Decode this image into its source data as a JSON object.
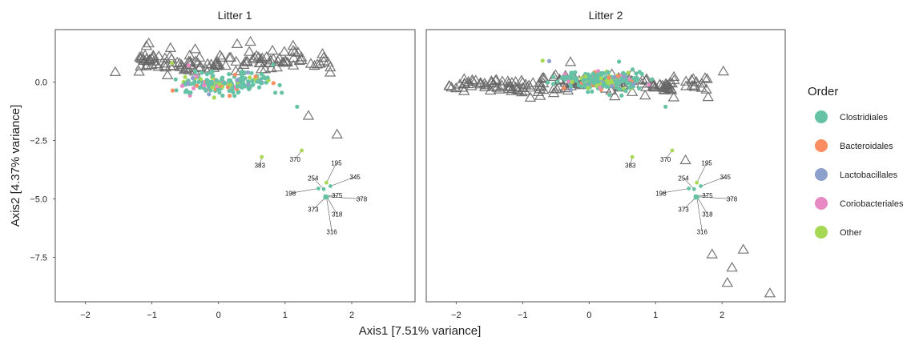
{
  "chart_data": {
    "type": "scatter",
    "xlabel": "Axis1 [7.51% variance]",
    "ylabel": "Axis2 [4.37% variance]",
    "xlim": [
      -2.45,
      2.95
    ],
    "ylim": [
      -9.4,
      2.25
    ],
    "xticks": [
      -2,
      -1,
      0,
      1,
      2
    ],
    "yticks": [
      -7.5,
      -5.0,
      -2.5,
      0.0
    ],
    "ytick_labels": [
      "−7.5",
      "−5.0",
      "−2.5",
      "0.0"
    ],
    "xtick_labels": [
      "−2",
      "−1",
      "0",
      "1",
      "2"
    ],
    "grid": false,
    "legend": {
      "title": "Order",
      "placement": "right",
      "entries": [
        {
          "name": "Clostridiales",
          "color": "#66c2a5"
        },
        {
          "name": "Bacteroidales",
          "color": "#fc8d62"
        },
        {
          "name": "Lactobacillales",
          "color": "#8da0cb"
        },
        {
          "name": "Coriobacteriales",
          "color": "#e78ac3"
        },
        {
          "name": "Other",
          "color": "#a6d854"
        }
      ]
    },
    "marker_colors": {
      "triangle_stroke": "#666666",
      "frame": "#6d6d6d",
      "label_line": "#555555"
    },
    "labeled_points": [
      {
        "label": "383",
        "x": 0.65,
        "y": -3.2,
        "order": "Other",
        "lx": 0.62,
        "ly": -3.55
      },
      {
        "label": "370",
        "x": 1.25,
        "y": -2.92,
        "order": "Other",
        "lx": 1.15,
        "ly": -3.3
      },
      {
        "label": "195",
        "x": 1.62,
        "y": -4.3,
        "order": "Other",
        "lx": 1.77,
        "ly": -3.45
      },
      {
        "label": "254",
        "x": 1.58,
        "y": -4.58,
        "order": "Clostridiales",
        "lx": 1.42,
        "ly": -4.1
      },
      {
        "label": "345",
        "x": 1.68,
        "y": -4.45,
        "order": "Clostridiales",
        "lx": 2.05,
        "ly": -4.05
      },
      {
        "label": "198",
        "x": 1.5,
        "y": -4.55,
        "order": "Clostridiales",
        "lx": 1.08,
        "ly": -4.75
      },
      {
        "label": "375",
        "x": 1.6,
        "y": -4.88,
        "order": "Clostridiales",
        "lx": 1.78,
        "ly": -4.85
      },
      {
        "label": "378",
        "x": 1.63,
        "y": -4.9,
        "order": "Clostridiales",
        "lx": 2.15,
        "ly": -5.0
      },
      {
        "label": "373",
        "x": 1.6,
        "y": -4.95,
        "order": "Clostridiales",
        "lx": 1.42,
        "ly": -5.45
      },
      {
        "label": "318",
        "x": 1.63,
        "y": -4.93,
        "order": "Clostridiales",
        "lx": 1.78,
        "ly": -5.65
      },
      {
        "label": "316",
        "x": 1.62,
        "y": -4.9,
        "order": "Clostridiales",
        "lx": 1.7,
        "ly": -6.4
      }
    ],
    "panels": [
      {
        "title": "Litter 1",
        "triangle_cluster": {
          "x_range": [
            -1.25,
            1.7
          ],
          "y_center": 0.85,
          "y_spread": 0.45,
          "count": 120,
          "seed": 11
        },
        "triangles": [
          {
            "x": -1.55,
            "y": 0.42
          },
          {
            "x": 1.35,
            "y": -1.45
          },
          {
            "x": 1.78,
            "y": -2.25
          },
          {
            "x": -0.72,
            "y": 1.45
          },
          {
            "x": 0.48,
            "y": 1.72
          },
          {
            "x": 0.28,
            "y": 1.62
          },
          {
            "x": 1.12,
            "y": 1.55
          },
          {
            "x": -0.35,
            "y": 1.4
          },
          {
            "x": 1.58,
            "y": 0.88
          }
        ],
        "point_cluster": {
          "x_range": [
            -0.95,
            1.1
          ],
          "y_center": -0.05,
          "y_spread": 0.38,
          "count": 190,
          "seed": 23
        },
        "points": [
          {
            "x": 1.18,
            "y": -1.05,
            "order": "Clostridiales"
          },
          {
            "x": 0.95,
            "y": -0.45,
            "order": "Clostridiales"
          },
          {
            "x": -0.7,
            "y": 0.82,
            "order": "Other"
          },
          {
            "x": -0.45,
            "y": 0.72,
            "order": "Coriobacteriales"
          },
          {
            "x": 0.82,
            "y": 0.75,
            "order": "Clostridiales"
          }
        ]
      },
      {
        "title": "Litter 2",
        "triangle_cluster": {
          "x_range": [
            -2.15,
            1.8
          ],
          "y_center": -0.15,
          "y_spread": 0.42,
          "count": 165,
          "seed": 37
        },
        "triangles": [
          {
            "x": 2.02,
            "y": 0.45
          },
          {
            "x": 1.45,
            "y": -3.35
          },
          {
            "x": 1.85,
            "y": -7.38
          },
          {
            "x": 2.32,
            "y": -7.18
          },
          {
            "x": 2.15,
            "y": -7.95
          },
          {
            "x": 2.08,
            "y": -8.6
          },
          {
            "x": 2.72,
            "y": -9.05
          },
          {
            "x": -2.1,
            "y": -0.18
          },
          {
            "x": -0.28,
            "y": 0.85
          }
        ],
        "point_cluster": {
          "x_range": [
            -0.75,
            1.1
          ],
          "y_center": 0.05,
          "y_spread": 0.38,
          "count": 190,
          "seed": 51
        },
        "points": [
          {
            "x": 1.15,
            "y": -1.05,
            "order": "Clostridiales"
          },
          {
            "x": -0.7,
            "y": 0.92,
            "order": "Other"
          },
          {
            "x": -0.6,
            "y": 0.9,
            "order": "Lactobacillales"
          },
          {
            "x": 0.45,
            "y": 0.88,
            "order": "Clostridiales"
          },
          {
            "x": 0.9,
            "y": -0.1,
            "order": "Coriobacteriales"
          }
        ]
      }
    ]
  }
}
